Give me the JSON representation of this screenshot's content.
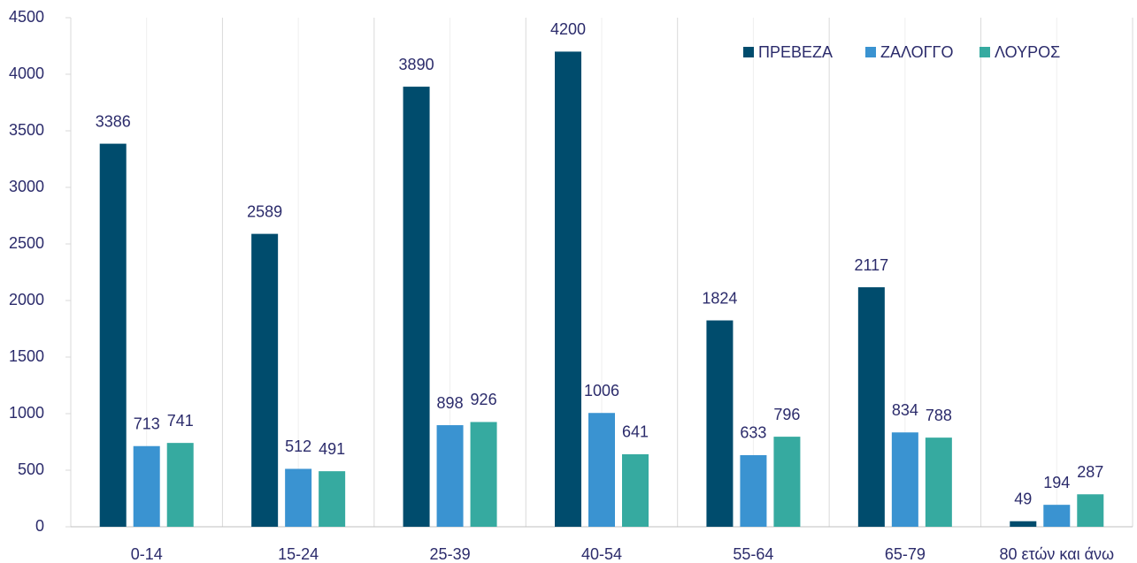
{
  "chart_data": {
    "type": "bar",
    "categories": [
      "0-14",
      "15-24",
      "25-39",
      "40-54",
      "55-64",
      "65-79",
      "80 ετών και άνω"
    ],
    "series": [
      {
        "name": "ΠΡΕΒΕΖΑ",
        "color": "#004c6d",
        "values": [
          3386,
          2589,
          3890,
          4200,
          1824,
          2117,
          49
        ]
      },
      {
        "name": "ΖΑΛΟΓΓΟ",
        "color": "#3a93d1",
        "values": [
          713,
          512,
          898,
          1006,
          633,
          834,
          194
        ]
      },
      {
        "name": "ΛΟΥΡΟΣ",
        "color": "#36aaa0",
        "values": [
          741,
          491,
          926,
          641,
          796,
          788,
          287
        ]
      }
    ],
    "ylim": [
      0,
      4500
    ],
    "yticks": [
      0,
      500,
      1000,
      1500,
      2000,
      2500,
      3000,
      3500,
      4000,
      4500
    ],
    "legend": "top-right"
  }
}
